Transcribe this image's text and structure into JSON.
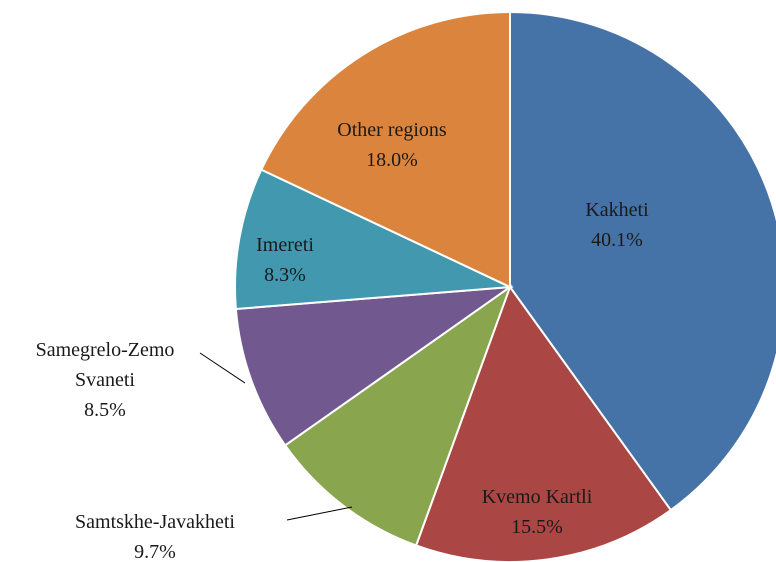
{
  "chart_data": {
    "type": "pie",
    "categories": [
      "Kakheti",
      "Kvemo Kartli",
      "Samtskhe-Javakheti",
      "Samegrelo-Zemo Svaneti",
      "Imereti",
      "Other regions"
    ],
    "values": [
      40.1,
      15.5,
      9.7,
      8.5,
      8.3,
      18.0
    ],
    "value_labels": [
      "40.1%",
      "15.5%",
      "9.7%",
      "8.5%",
      "8.3%",
      "18.0%"
    ],
    "colors": [
      "#4572a7",
      "#aa4643",
      "#89a54e",
      "#71588f",
      "#4198af",
      "#db843d"
    ]
  }
}
